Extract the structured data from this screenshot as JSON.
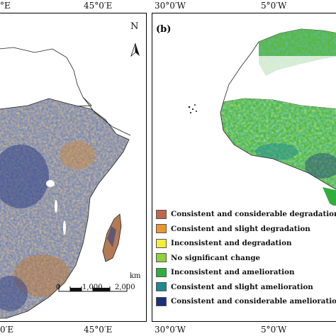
{
  "panel_a": {
    "top_ticks": [
      "°E",
      "45°0′E"
    ],
    "bottom_ticks": [
      "0′E",
      "45°0′E"
    ],
    "north_label": "N",
    "scale_bar": {
      "ticks": [
        "0",
        "1,000",
        "2,000"
      ],
      "unit": "km"
    }
  },
  "panel_b": {
    "label": "(b)",
    "top_ticks": [
      "30°0′W",
      "5°0′W"
    ],
    "bottom_ticks": [
      "30°0′W",
      "5°0′W"
    ]
  },
  "legend": [
    {
      "label": "Consistent and considerable degradation",
      "color": "#c0654a"
    },
    {
      "label": "Consistent and slight degradation",
      "color": "#e8962e"
    },
    {
      "label": "Inconsistent and degradation",
      "color": "#f2ee3a"
    },
    {
      "label": "No significant change",
      "color": "#8fd13a"
    },
    {
      "label": "Inconsistent and amelioration",
      "color": "#2fae3f"
    },
    {
      "label": "Consistent and slight amelioration",
      "color": "#1d8a8f"
    },
    {
      "label": "Consistent and considerable amelioration",
      "color": "#1c2f7a"
    }
  ]
}
